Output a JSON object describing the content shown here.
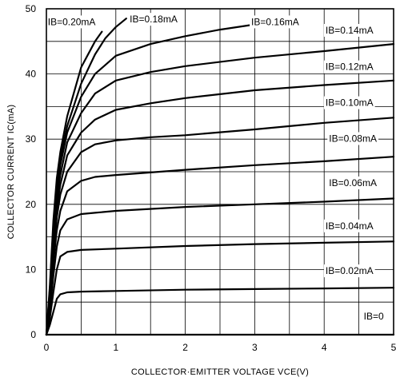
{
  "chart_data": {
    "type": "line",
    "xlabel": "COLLECTOR·EMITTER VOLTAGE VCE(V)",
    "ylabel": "COLLECTOR CURRENT IC(mA)",
    "xlim": [
      0,
      5
    ],
    "ylim": [
      0,
      50
    ],
    "x_ticks": [
      "0",
      "1",
      "2",
      "3",
      "4",
      "5"
    ],
    "y_ticks": [
      "0",
      "10",
      "20",
      "30",
      "40",
      "50"
    ],
    "x_minor_step": 0.5,
    "y_minor_step": 5,
    "grid": true,
    "series": [
      {
        "name": "IB=0",
        "x": [
          0,
          5
        ],
        "y": [
          0,
          0
        ]
      },
      {
        "name": "IB=0.02mA",
        "x": [
          0,
          0.05,
          0.1,
          0.15,
          0.2,
          0.3,
          0.5,
          1,
          2,
          3,
          4,
          5
        ],
        "y": [
          0,
          1.5,
          3.5,
          5.5,
          6.2,
          6.5,
          6.6,
          6.7,
          6.9,
          7.0,
          7.1,
          7.2
        ]
      },
      {
        "name": "IB=0.04mA",
        "x": [
          0,
          0.05,
          0.1,
          0.15,
          0.2,
          0.3,
          0.5,
          1,
          2,
          3,
          4,
          5
        ],
        "y": [
          0,
          2.5,
          6.5,
          10,
          12,
          12.7,
          13,
          13.2,
          13.6,
          13.9,
          14.1,
          14.3
        ]
      },
      {
        "name": "IB=0.06mA",
        "x": [
          0,
          0.05,
          0.1,
          0.15,
          0.2,
          0.3,
          0.5,
          0.7,
          1,
          2,
          3,
          4,
          5
        ],
        "y": [
          0,
          3.5,
          9,
          13.5,
          16,
          17.7,
          18.5,
          18.7,
          19,
          19.6,
          20,
          20.4,
          20.9
        ]
      },
      {
        "name": "IB=0.08mA",
        "x": [
          0,
          0.05,
          0.1,
          0.15,
          0.2,
          0.3,
          0.5,
          0.7,
          1,
          2,
          3,
          4,
          5
        ],
        "y": [
          0,
          4.5,
          11,
          16,
          19,
          22,
          23.6,
          24.2,
          24.5,
          25.3,
          26,
          26.6,
          27.3
        ]
      },
      {
        "name": "IB=0.10mA",
        "x": [
          0,
          0.05,
          0.1,
          0.15,
          0.2,
          0.3,
          0.5,
          0.7,
          1,
          1.5,
          2,
          3,
          4,
          5
        ],
        "y": [
          0,
          5,
          12.5,
          18,
          21.5,
          25,
          28,
          29.2,
          29.8,
          30.3,
          30.6,
          31.5,
          32.5,
          33.3
        ]
      },
      {
        "name": "IB=0.12mA",
        "x": [
          0,
          0.05,
          0.1,
          0.15,
          0.2,
          0.3,
          0.5,
          0.7,
          1,
          1.5,
          2,
          3,
          4,
          5
        ],
        "y": [
          0,
          5.5,
          13.5,
          19.5,
          23,
          27.5,
          31,
          33,
          34.5,
          35.5,
          36.3,
          37.5,
          38.3,
          39
        ]
      },
      {
        "name": "IB=0.14mA",
        "x": [
          0,
          0.05,
          0.1,
          0.15,
          0.2,
          0.3,
          0.5,
          0.7,
          1,
          1.5,
          2,
          3,
          4,
          5
        ],
        "y": [
          0,
          6,
          14.5,
          21,
          24.5,
          29.5,
          34,
          37,
          39,
          40.3,
          41.2,
          42.5,
          43.5,
          44.6
        ]
      },
      {
        "name": "IB=0.16mA",
        "x": [
          0,
          0.05,
          0.1,
          0.15,
          0.2,
          0.3,
          0.5,
          0.7,
          1,
          1.5,
          2,
          2.5,
          3,
          3.3
        ],
        "y": [
          0,
          6.5,
          15.5,
          22,
          26,
          31,
          36.5,
          40,
          42.8,
          44.6,
          45.8,
          46.8,
          47.6,
          48
        ]
      },
      {
        "name": "IB=0.18mA",
        "x": [
          0,
          0.05,
          0.1,
          0.15,
          0.2,
          0.3,
          0.5,
          0.7,
          0.85,
          1,
          1.15
        ],
        "y": [
          0,
          7,
          16.5,
          23,
          27,
          32,
          38.5,
          43,
          45.5,
          47.2,
          48.5
        ]
      },
      {
        "name": "IB=0.20mA",
        "x": [
          0,
          0.05,
          0.1,
          0.15,
          0.2,
          0.3,
          0.5,
          0.7,
          0.8
        ],
        "y": [
          0,
          7.5,
          17.5,
          24,
          28,
          33.5,
          41,
          45,
          46.5
        ]
      }
    ],
    "curve_labels": [
      {
        "text": "IB=0.20mA",
        "x": 0.02,
        "y": 47.5
      },
      {
        "text": "IB=0.18mA",
        "x": 1.2,
        "y": 47.9
      },
      {
        "text": "IB=0.16mA",
        "x": 2.95,
        "y": 47.5
      },
      {
        "text": "IB=0.14mA",
        "x": 4.02,
        "y": 46.2
      },
      {
        "text": "IB=0.12mA",
        "x": 4.02,
        "y": 40.6
      },
      {
        "text": "IB=0.10mA",
        "x": 4.02,
        "y": 35.1
      },
      {
        "text": "IB=0.08mA",
        "x": 4.07,
        "y": 29.6
      },
      {
        "text": "IB=0.06mA",
        "x": 4.07,
        "y": 22.8
      },
      {
        "text": "IB=0.04mA",
        "x": 4.02,
        "y": 16.2
      },
      {
        "text": "IB=0.02mA",
        "x": 4.02,
        "y": 9.3
      },
      {
        "text": "IB=0",
        "x": 4.57,
        "y": 2.3
      }
    ]
  }
}
